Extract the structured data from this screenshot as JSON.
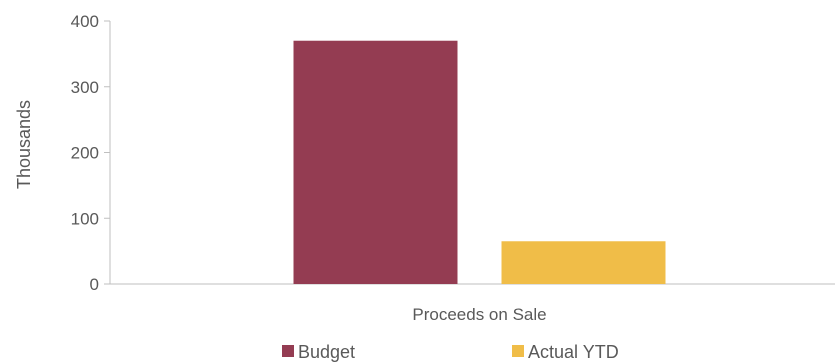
{
  "chart_data": {
    "type": "bar",
    "categories": [
      "Proceeds on Sale"
    ],
    "series": [
      {
        "name": "Budget",
        "values": [
          370
        ],
        "color": "#943C52"
      },
      {
        "name": "Actual YTD",
        "values": [
          65
        ],
        "color": "#F0BD48"
      }
    ],
    "ylabel": "Thousands",
    "xlabel": "",
    "ylim": [
      0,
      400
    ],
    "yticks": [
      "0",
      "100",
      "200",
      "300",
      "400"
    ],
    "grid": false,
    "legend_position": "bottom"
  }
}
